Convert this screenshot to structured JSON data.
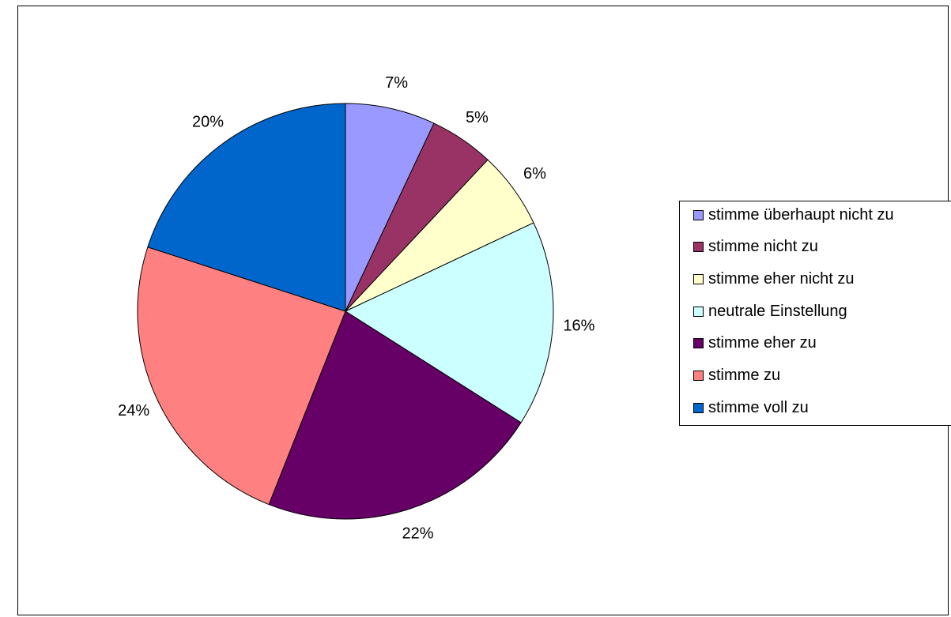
{
  "chart_data": {
    "type": "pie",
    "title": "",
    "start_angle_deg": 0,
    "direction": "clockwise",
    "legend_position": "right",
    "slices": [
      {
        "label": "stimme überhaupt nicht zu",
        "value": 7,
        "display": "7%",
        "color": "#9999FF"
      },
      {
        "label": "stimme nicht zu",
        "value": 5,
        "display": "5%",
        "color": "#993366"
      },
      {
        "label": "stimme eher nicht zu",
        "value": 6,
        "display": "6%",
        "color": "#FFFFCC"
      },
      {
        "label": "neutrale Einstellung",
        "value": 16,
        "display": "16%",
        "color": "#CCFFFF"
      },
      {
        "label": "stimme eher zu",
        "value": 22,
        "display": "22%",
        "color": "#660066"
      },
      {
        "label": "stimme zu",
        "value": 24,
        "display": "24%",
        "color": "#FF8080"
      },
      {
        "label": "stimme voll zu",
        "value": 20,
        "display": "20%",
        "color": "#0066CC"
      }
    ]
  }
}
